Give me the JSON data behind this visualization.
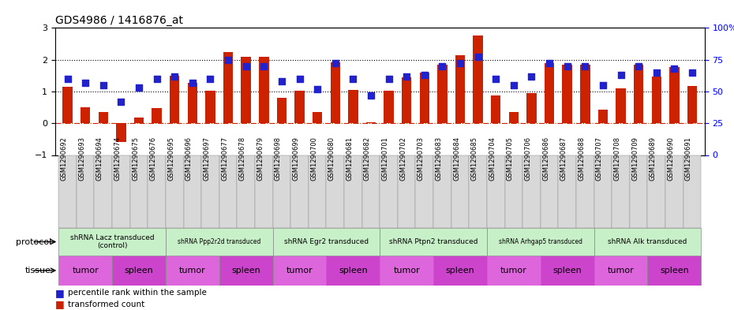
{
  "title": "GDS4986 / 1416876_at",
  "samples": [
    "GSM1290692",
    "GSM1290693",
    "GSM1290694",
    "GSM1290674",
    "GSM1290675",
    "GSM1290676",
    "GSM1290695",
    "GSM1290696",
    "GSM1290697",
    "GSM1290677",
    "GSM1290678",
    "GSM1290679",
    "GSM1290698",
    "GSM1290699",
    "GSM1290700",
    "GSM1290680",
    "GSM1290681",
    "GSM1290682",
    "GSM1290701",
    "GSM1290702",
    "GSM1290703",
    "GSM1290683",
    "GSM1290684",
    "GSM1290685",
    "GSM1290704",
    "GSM1290705",
    "GSM1290706",
    "GSM1290686",
    "GSM1290687",
    "GSM1290688",
    "GSM1290707",
    "GSM1290708",
    "GSM1290709",
    "GSM1290689",
    "GSM1290690",
    "GSM1290691"
  ],
  "bar_values": [
    1.15,
    0.5,
    0.35,
    -0.6,
    0.18,
    0.48,
    1.5,
    1.28,
    1.02,
    2.25,
    2.08,
    2.08,
    0.8,
    1.03,
    0.35,
    1.92,
    1.05,
    0.04,
    1.02,
    1.45,
    1.6,
    1.85,
    2.15,
    2.75,
    0.88,
    0.35,
    0.95,
    1.9,
    1.85,
    1.85,
    0.43,
    1.1,
    1.85,
    1.47,
    1.78,
    1.18
  ],
  "percentile_values": [
    60,
    57,
    55,
    42,
    53,
    60,
    62,
    57,
    60,
    75,
    70,
    70,
    58,
    60,
    52,
    72,
    60,
    47,
    60,
    62,
    63,
    70,
    72,
    77,
    60,
    55,
    62,
    72,
    70,
    70,
    55,
    63,
    70,
    65,
    68,
    65
  ],
  "protocols": [
    {
      "label": "shRNA Lacz transduced\n(control)",
      "start": 0,
      "end": 6
    },
    {
      "label": "shRNA Ppp2r2d transduced",
      "start": 6,
      "end": 12
    },
    {
      "label": "shRNA Egr2 transduced",
      "start": 12,
      "end": 18
    },
    {
      "label": "shRNA Ptpn2 transduced",
      "start": 18,
      "end": 24
    },
    {
      "label": "shRNA Arhgap5 transduced",
      "start": 24,
      "end": 30
    },
    {
      "label": "shRNA Alk transduced",
      "start": 30,
      "end": 36
    }
  ],
  "tissues": [
    {
      "label": "tumor",
      "start": 0,
      "end": 3
    },
    {
      "label": "spleen",
      "start": 3,
      "end": 6
    },
    {
      "label": "tumor",
      "start": 6,
      "end": 9
    },
    {
      "label": "spleen",
      "start": 9,
      "end": 12
    },
    {
      "label": "tumor",
      "start": 12,
      "end": 15
    },
    {
      "label": "spleen",
      "start": 15,
      "end": 18
    },
    {
      "label": "tumor",
      "start": 18,
      "end": 21
    },
    {
      "label": "spleen",
      "start": 21,
      "end": 24
    },
    {
      "label": "tumor",
      "start": 24,
      "end": 27
    },
    {
      "label": "spleen",
      "start": 27,
      "end": 30
    },
    {
      "label": "tumor",
      "start": 30,
      "end": 33
    },
    {
      "label": "spleen",
      "start": 33,
      "end": 36
    }
  ],
  "bar_color": "#cc2200",
  "dot_color": "#2222cc",
  "ylim_left": [
    -1,
    3
  ],
  "ylim_right": [
    0,
    100
  ],
  "yticks_left": [
    -1,
    0,
    1,
    2,
    3
  ],
  "yticks_right": [
    0,
    25,
    50,
    75,
    100
  ],
  "yticklabels_right": [
    "0",
    "25",
    "50",
    "75",
    "100%"
  ],
  "hlines": [
    2.0,
    1.0
  ],
  "hline_zero_color": "#cc2200",
  "grid_hline_color": "black",
  "bar_width": 0.55,
  "dot_size": 28,
  "proto_color": "#c8f0c8",
  "tumor_color": "#dd66dd",
  "spleen_color": "#cc44cc",
  "sample_bg_color": "#d8d8d8",
  "n_samples": 36
}
